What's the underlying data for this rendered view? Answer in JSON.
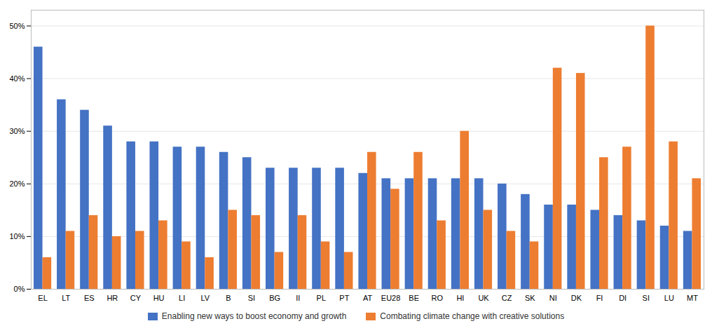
{
  "chart_data": {
    "type": "bar",
    "categories": [
      "EL",
      "LT",
      "ES",
      "HR",
      "CY",
      "HU",
      "LI",
      "LV",
      "B",
      "SI",
      "BG",
      "II",
      "PL",
      "PT",
      "AT",
      "EU28",
      "BE",
      "RO",
      "HI",
      "UK",
      "CZ",
      "SK",
      "NI",
      "DK",
      "FI",
      "DI",
      "SI",
      "LU",
      "MT"
    ],
    "series": [
      {
        "name": "Enabling new ways to boost economy and growth",
        "color": "#4472C4",
        "values": [
          46,
          36,
          34,
          31,
          28,
          28,
          27,
          27,
          26,
          25,
          23,
          23,
          23,
          23,
          22,
          21,
          21,
          21,
          21,
          21,
          20,
          18,
          16,
          16,
          15,
          14,
          13,
          12,
          11
        ]
      },
      {
        "name": "Combating climate change with creative solutions",
        "color": "#ED7D31",
        "values": [
          6,
          11,
          14,
          10,
          11,
          13,
          9,
          6,
          15,
          14,
          7,
          14,
          9,
          7,
          26,
          19,
          26,
          13,
          30,
          15,
          11,
          9,
          42,
          41,
          25,
          27,
          50,
          28,
          21
        ]
      }
    ],
    "ylim": [
      0,
      53
    ],
    "yticks": [
      {
        "value": 0,
        "label": "0%"
      },
      {
        "value": 10,
        "label": "10%"
      },
      {
        "value": 20,
        "label": "20%"
      },
      {
        "value": 30,
        "label": "30%"
      },
      {
        "value": 40,
        "label": "40%"
      },
      {
        "value": 50,
        "label": "50%"
      }
    ],
    "grid": true,
    "legend": "bottom"
  }
}
